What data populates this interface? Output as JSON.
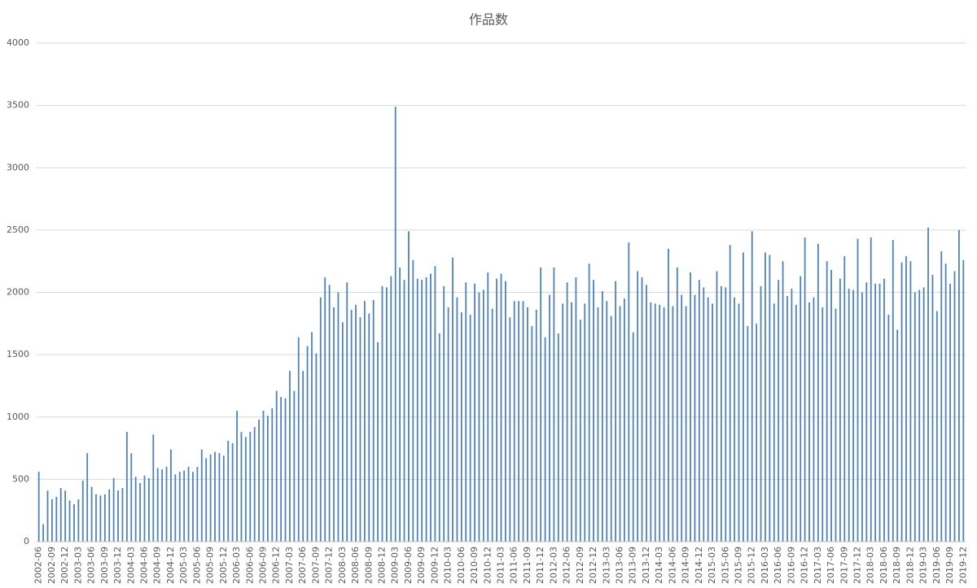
{
  "chart_data": {
    "type": "bar",
    "title": "作品数",
    "categories": [
      "2002-06",
      null,
      null,
      "2002-09",
      null,
      null,
      "2002-12",
      null,
      null,
      "2003-03",
      null,
      null,
      "2003-06",
      null,
      null,
      "2003-09",
      null,
      null,
      "2003-12",
      null,
      null,
      "2004-03",
      null,
      null,
      "2004-06",
      null,
      null,
      "2004-09",
      null,
      null,
      "2004-12",
      null,
      null,
      "2005-03",
      null,
      null,
      "2005-06",
      null,
      null,
      "2005-09",
      null,
      null,
      "2005-12",
      null,
      null,
      "2006-03",
      null,
      null,
      "2006-06",
      null,
      null,
      "2006-09",
      null,
      null,
      "2006-12",
      null,
      null,
      "2007-03",
      null,
      null,
      "2007-06",
      null,
      null,
      "2007-09",
      null,
      null,
      "2007-12",
      null,
      null,
      "2008-03",
      null,
      null,
      "2008-06",
      null,
      null,
      "2008-09",
      null,
      null,
      "2008-12",
      null,
      null,
      "2009-03",
      null,
      null,
      "2009-06",
      null,
      null,
      "2009-09",
      null,
      null,
      "2009-12",
      null,
      null,
      "2010-03",
      null,
      null,
      "2010-06",
      null,
      null,
      "2010-09",
      null,
      null,
      "2010-12",
      null,
      null,
      "2011-03",
      null,
      null,
      "2011-06",
      null,
      null,
      "2011-09",
      null,
      null,
      "2011-12",
      null,
      null,
      "2012-03",
      null,
      null,
      "2012-06",
      null,
      null,
      "2012-09",
      null,
      null,
      "2012-12",
      null,
      null,
      "2013-03",
      null,
      null,
      "2013-06",
      null,
      null,
      "2013-09",
      null,
      null,
      "2013-12",
      null,
      null,
      "2014-03",
      null,
      null,
      "2014-06",
      null,
      null,
      "2014-09",
      null,
      null,
      "2014-12",
      null,
      null,
      "2015-03",
      null,
      null,
      "2015-06",
      null,
      null,
      "2015-09",
      null,
      null,
      "2015-12",
      null,
      null,
      "2016-03",
      null,
      null,
      "2016-06",
      null,
      null,
      "2016-09",
      null,
      null,
      "2016-12",
      null,
      null,
      "2017-03",
      null,
      null,
      "2017-06",
      null,
      null,
      "2017-09",
      null,
      null,
      "2017-12",
      null,
      null,
      "2018-03",
      null,
      null,
      "2018-06",
      null,
      null,
      "2018-09",
      null,
      null,
      "2018-12",
      null,
      null,
      "2019-03",
      null,
      null,
      "2019-06",
      null,
      null,
      "2019-09",
      null,
      null,
      "2019-12"
    ],
    "values": [
      560,
      140,
      410,
      340,
      360,
      430,
      410,
      330,
      300,
      340,
      490,
      710,
      440,
      380,
      370,
      380,
      420,
      510,
      410,
      430,
      880,
      710,
      520,
      470,
      530,
      510,
      860,
      590,
      580,
      600,
      740,
      540,
      560,
      570,
      600,
      560,
      600,
      740,
      670,
      700,
      720,
      710,
      690,
      810,
      790,
      1050,
      880,
      840,
      880,
      920,
      980,
      1050,
      1010,
      1070,
      1210,
      1160,
      1150,
      1370,
      1210,
      1640,
      1370,
      1570,
      1680,
      1510,
      1960,
      2120,
      2060,
      1880,
      2000,
      1760,
      2080,
      1860,
      1900,
      1800,
      1930,
      1830,
      1940,
      1600,
      2050,
      2040,
      2130,
      3490,
      2200,
      2100,
      2490,
      2260,
      2110,
      2100,
      2120,
      2150,
      2210,
      1670,
      2050,
      1880,
      2280,
      1960,
      1840,
      2080,
      1820,
      2070,
      2000,
      2020,
      2160,
      1870,
      2110,
      2150,
      2090,
      1800,
      1930,
      1930,
      1930,
      1880,
      1730,
      1860,
      2200,
      1640,
      1980,
      2200,
      1670,
      1910,
      2080,
      1920,
      2120,
      1780,
      1910,
      2230,
      2100,
      1880,
      2010,
      1930,
      1810,
      2090,
      1890,
      1950,
      2400,
      1680,
      2170,
      2120,
      2060,
      1920,
      1910,
      1900,
      1880,
      2350,
      1890,
      2200,
      1980,
      1890,
      2160,
      1980,
      2100,
      2040,
      1960,
      1910,
      2170,
      2050,
      2040,
      2380,
      1960,
      1910,
      2320,
      1730,
      2490,
      1750,
      2050,
      2320,
      2300,
      1910,
      2100,
      2250,
      1970,
      2030,
      1900,
      2130,
      2440,
      1920,
      1960,
      2390,
      1880,
      2250,
      2180,
      1870,
      2110,
      2290,
      2030,
      2020,
      2430,
      2000,
      2080,
      2440,
      2070,
      2070,
      2110,
      1820,
      2420,
      1700,
      2240,
      2290,
      2250,
      2000,
      2020,
      2040,
      2520,
      2140,
      1850,
      2330,
      2230,
      2070,
      2170,
      2500,
      2260
    ],
    "color": "#4f81bd",
    "ylim": [
      0,
      4000
    ],
    "yticks": [
      0,
      500,
      1000,
      1500,
      2000,
      2500,
      3000,
      3500,
      4000
    ],
    "grid": true
  }
}
